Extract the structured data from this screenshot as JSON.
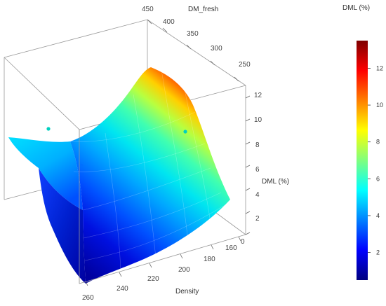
{
  "chart_data": {
    "type": "surface3d",
    "title": "",
    "x_label": "Density",
    "y_label": "DM_fresh",
    "z_label": "DML (%)",
    "x_range": [
      160,
      260
    ],
    "y_range": [
      250,
      450
    ],
    "z_range": [
      0,
      12
    ],
    "x_ticks": [
      "160",
      "180",
      "200",
      "220",
      "240",
      "260"
    ],
    "y_ticks": [
      "250",
      "300",
      "350",
      "400",
      "450"
    ],
    "z_ticks": [
      "0",
      "2",
      "4",
      "6",
      "8",
      "10",
      "12"
    ],
    "surface_samples": [
      {
        "Density": 260,
        "DM_fresh": 250,
        "DML": 0.5
      },
      {
        "Density": 260,
        "DM_fresh": 450,
        "DML": 7.5
      },
      {
        "Density": 160,
        "DM_fresh": 450,
        "DML": 7.0
      },
      {
        "Density": 160,
        "DM_fresh": 300,
        "DML": 12.5
      },
      {
        "Density": 160,
        "DM_fresh": 250,
        "DML": 2.5
      },
      {
        "Density": 200,
        "DM_fresh": 350,
        "DML": 5.0
      }
    ],
    "points": [
      {
        "Density": 250,
        "DM_fresh": 440,
        "DML": 8.5
      },
      {
        "Density": 175,
        "DM_fresh": 330,
        "DML": 8.0
      },
      {
        "Density": 240,
        "DM_fresh": 420,
        "DML": 6.0
      }
    ],
    "colorbar": {
      "title": "DML (%)",
      "min": 0.5,
      "max": 13.5,
      "ticks": [
        "2",
        "4",
        "6",
        "8",
        "10",
        "12"
      ],
      "colors": [
        "#00007f",
        "#0000ff",
        "#007fff",
        "#00ffff",
        "#7fff7f",
        "#ffff00",
        "#ff7f00",
        "#ff0000",
        "#7f0000"
      ]
    }
  }
}
